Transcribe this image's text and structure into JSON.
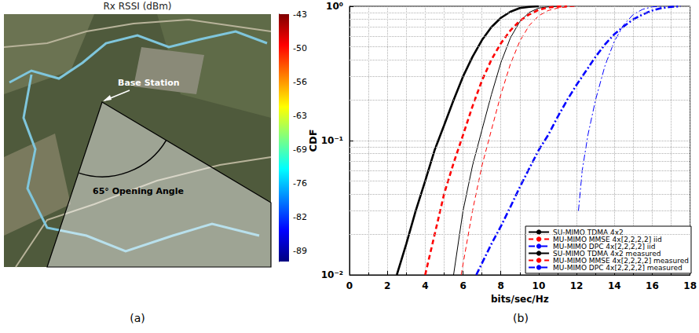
{
  "chart_data": [
    {
      "type": "map",
      "title": "Rx RSSI (dBm)",
      "annotations": [
        "Base Station",
        "65° Opening Angle"
      ],
      "caption": "(a)",
      "colorbar": {
        "range": [
          -91,
          -43
        ],
        "ticks": [
          -43,
          {
            "value": -49.57,
            "label": "-50"
          },
          {
            "value": -56.14,
            "label": "-56"
          },
          {
            "value": -62.71,
            "label": "-63"
          },
          {
            "value": -69.29,
            "label": "-69"
          },
          {
            "value": -75.86,
            "label": "-76"
          },
          {
            "value": -82.43,
            "label": "-82"
          },
          -89
        ]
      }
    },
    {
      "type": "line",
      "caption": "(b)",
      "xlabel": "bits/sec/Hz",
      "ylabel": "CDF",
      "xlim": [
        0,
        18
      ],
      "xticks": [
        0,
        2,
        4,
        6,
        8,
        10,
        12,
        14,
        16,
        18
      ],
      "ylim": [
        0.01,
        1
      ],
      "yticks": [
        {
          "value": 0.01,
          "label": "10⁻²"
        },
        {
          "value": 0.1,
          "label": "10⁻¹"
        },
        {
          "value": 1,
          "label": "10⁰"
        }
      ],
      "log": "y",
      "grid": true,
      "legend": "lower right",
      "series": [
        {
          "name": "SU-MIMO TDMA 4x2",
          "color": "#000000",
          "line_style": "solid",
          "x": [
            5.5,
            6,
            6.5,
            7,
            7.5,
            8,
            8.5,
            9,
            9.5,
            10,
            10.5,
            11
          ],
          "values": [
            0.01,
            0.03,
            0.065,
            0.12,
            0.22,
            0.38,
            0.58,
            0.77,
            0.9,
            0.97,
            0.99,
            1
          ]
        },
        {
          "name": "MU-MIMO MMSE 4x[2,2,2,2] iid",
          "color": "#ff0000",
          "line_style": "dashed",
          "x": [
            5.9,
            6.5,
            7,
            7.5,
            8,
            8.5,
            9,
            9.5,
            10,
            10.5,
            11,
            11.5,
            12
          ],
          "values": [
            0.01,
            0.03,
            0.065,
            0.12,
            0.22,
            0.37,
            0.55,
            0.72,
            0.85,
            0.93,
            0.97,
            0.99,
            1
          ]
        },
        {
          "name": "MU-MIMO DPC 4x[2,2,2,2] iid",
          "color": "#0000ff",
          "line_style": "dashdot",
          "x": [
            12.1,
            12.3,
            12.6,
            13,
            13.5,
            14,
            14.5,
            15,
            15.5,
            16,
            16.5
          ],
          "values": [
            0.03,
            0.06,
            0.11,
            0.2,
            0.36,
            0.55,
            0.73,
            0.87,
            0.95,
            0.99,
            1
          ]
        },
        {
          "name": "SU-MIMO TDMA 4x2 measured",
          "color": "#000000",
          "line_style": "bold-solid",
          "x": [
            2.5,
            3,
            3.5,
            4,
            4.5,
            5,
            5.5,
            6,
            6.5,
            7,
            7.5,
            8,
            8.5,
            9,
            9.5,
            10
          ],
          "values": [
            0.01,
            0.017,
            0.03,
            0.05,
            0.085,
            0.13,
            0.2,
            0.3,
            0.42,
            0.56,
            0.7,
            0.82,
            0.91,
            0.97,
            0.99,
            1
          ]
        },
        {
          "name": "MU-MIMO MMSE 4x[2,2,2,2] measured",
          "color": "#ff0000",
          "line_style": "bold-dashed",
          "x": [
            4,
            4.5,
            5,
            5.5,
            6,
            6.5,
            7,
            7.5,
            8,
            8.5,
            9,
            9.5,
            10,
            10.5,
            11,
            11.5
          ],
          "values": [
            0.01,
            0.02,
            0.04,
            0.068,
            0.11,
            0.18,
            0.28,
            0.4,
            0.53,
            0.66,
            0.78,
            0.87,
            0.94,
            0.98,
            0.995,
            1
          ]
        },
        {
          "name": "MU-MIMO DPC 4x[2,2,2,2] measured",
          "color": "#0000ff",
          "line_style": "bold-dashdot",
          "x": [
            6.7,
            7.5,
            8,
            8.5,
            9,
            9.5,
            10,
            10.5,
            11,
            11.5,
            12,
            12.5,
            13,
            13.5,
            14,
            14.5,
            15,
            15.5,
            16,
            16.5,
            17,
            17.5
          ],
          "values": [
            0.01,
            0.017,
            0.023,
            0.032,
            0.045,
            0.062,
            0.085,
            0.11,
            0.15,
            0.2,
            0.26,
            0.33,
            0.42,
            0.52,
            0.62,
            0.71,
            0.8,
            0.87,
            0.93,
            0.97,
            0.99,
            1
          ]
        }
      ]
    }
  ]
}
